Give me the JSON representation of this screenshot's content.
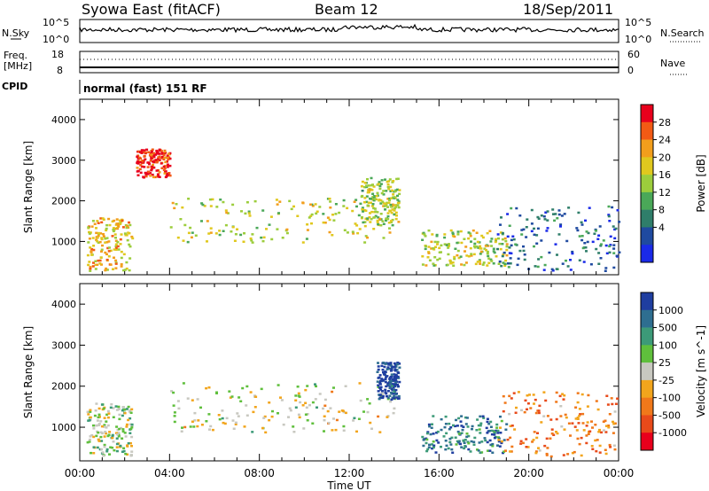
{
  "header": {
    "title": "Syowa East (fitACF)",
    "beam": "Beam 12",
    "date": "18/Sep/2011"
  },
  "panels": {
    "nsky": {
      "label": "N.Sky",
      "tick_top": "10^5",
      "tick_bottom": "10^0"
    },
    "nsearch": {
      "label": "N.Search",
      "tick_top": "10^5",
      "tick_bottom": "10^0"
    },
    "freq": {
      "label_line1": "Freq.",
      "label_line2": "[MHz]",
      "tick_top": "18",
      "tick_bottom": "8"
    },
    "nave": {
      "label": "Nave",
      "tick_top": "60",
      "tick_bottom": "0"
    },
    "cpid": {
      "label": "CPID",
      "text": "normal (fast) 151 RF"
    }
  },
  "chart_data": [
    {
      "type": "heatmap",
      "name": "power",
      "ylabel": "Slant Range [km]",
      "ylim": [
        180,
        4500
      ],
      "yticks": [
        "1000",
        "2000",
        "3000",
        "4000"
      ],
      "xticks": [
        "00:00",
        "04:00",
        "08:00",
        "12:00",
        "16:00",
        "20:00",
        "00:00"
      ],
      "colorbar": {
        "label": "Power [dB]",
        "ticks": [
          "28",
          "24",
          "20",
          "16",
          "12",
          "8",
          "4"
        ],
        "colors": [
          "#e8001c",
          "#f25a14",
          "#f29e1c",
          "#e0c81e",
          "#9ccd3c",
          "#4aa858",
          "#2f7e6a",
          "#1f4aa0",
          "#1a2ae8"
        ]
      },
      "regions": [
        {
          "t0": 0.3,
          "t1": 2.3,
          "r0": 300,
          "r1": 1600,
          "level": 0.35
        },
        {
          "t0": 2.5,
          "t1": 4.0,
          "r0": 2600,
          "r1": 3300,
          "level": 0.1
        },
        {
          "t0": 4.0,
          "t1": 14.0,
          "r0": 1000,
          "r1": 2100,
          "level": 0.45
        },
        {
          "t0": 12.5,
          "t1": 14.2,
          "r0": 1400,
          "r1": 2600,
          "level": 0.5
        },
        {
          "t0": 15.2,
          "t1": 19.0,
          "r0": 400,
          "r1": 1300,
          "level": 0.45
        },
        {
          "t0": 18.5,
          "t1": 24.0,
          "r0": 300,
          "r1": 1900,
          "level": 0.8
        }
      ]
    },
    {
      "type": "heatmap",
      "name": "velocity",
      "ylabel": "Slant Range [km]",
      "ylim": [
        180,
        4500
      ],
      "yticks": [
        "1000",
        "2000",
        "3000",
        "4000"
      ],
      "xticks": [
        "00:00",
        "04:00",
        "08:00",
        "12:00",
        "16:00",
        "20:00",
        "00:00"
      ],
      "xlabel": "Time UT",
      "colorbar": {
        "label": "Velocity [m s^-1]",
        "ticks": [
          "1000",
          "500",
          "100",
          "25",
          "-25",
          "-100",
          "-500",
          "-1000"
        ],
        "colors": [
          "#1f3ea0",
          "#2e6e90",
          "#3c9a78",
          "#5fbf3c",
          "#c8c8c0",
          "#f2a51c",
          "#f0781a",
          "#e84a1a",
          "#e8001c"
        ]
      },
      "regions": [
        {
          "t0": 0.3,
          "t1": 2.3,
          "r0": 300,
          "r1": 1600,
          "level": 0.45
        },
        {
          "t0": 4.0,
          "t1": 14.0,
          "r0": 900,
          "r1": 2100,
          "level": 0.5
        },
        {
          "t0": 13.2,
          "t1": 14.2,
          "r0": 1700,
          "r1": 2600,
          "level": 0.05
        },
        {
          "t0": 15.2,
          "t1": 19.0,
          "r0": 400,
          "r1": 1300,
          "level": 0.2
        },
        {
          "t0": 18.5,
          "t1": 24.0,
          "r0": 300,
          "r1": 1900,
          "level": 0.7
        }
      ]
    }
  ]
}
